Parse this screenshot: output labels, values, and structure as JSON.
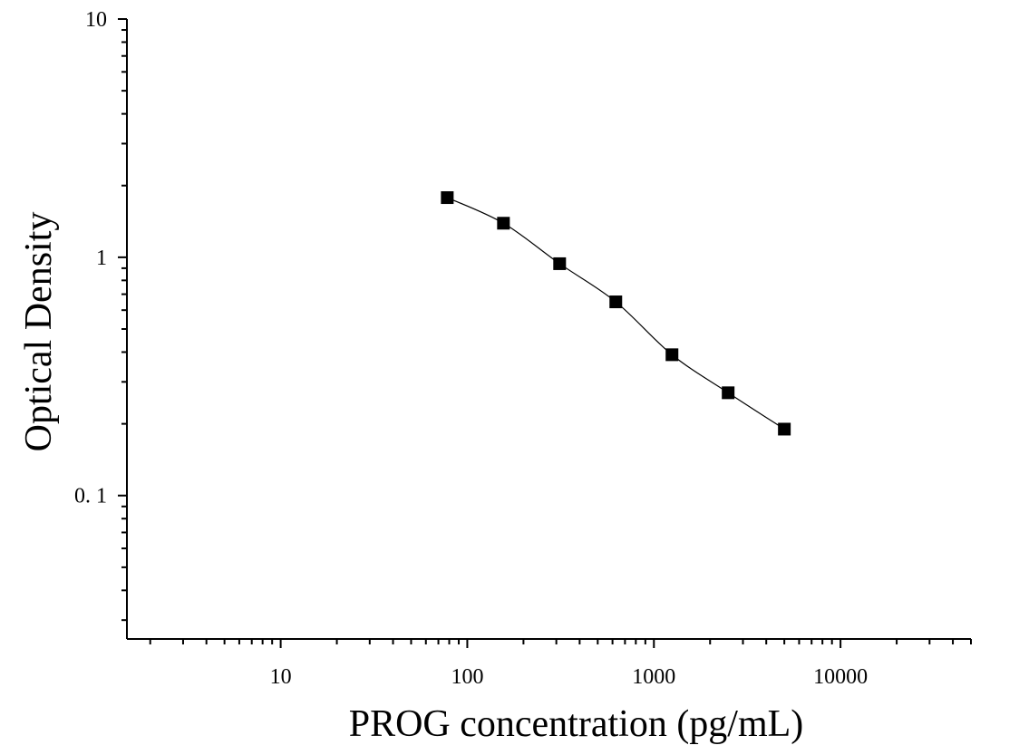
{
  "chart_data": {
    "type": "scatter",
    "xlabel": "PROG concentration (pg/mL)",
    "ylabel": "Optical Density",
    "xscale": "log",
    "yscale": "log",
    "xlim": [
      1.5,
      50000
    ],
    "ylim": [
      0.025,
      10
    ],
    "x_ticks": [
      {
        "value": 10,
        "label": "10"
      },
      {
        "value": 100,
        "label": "100"
      },
      {
        "value": 1000,
        "label": "1000"
      },
      {
        "value": 10000,
        "label": "10000"
      }
    ],
    "y_ticks": [
      {
        "value": 10,
        "label": "10"
      },
      {
        "value": 1,
        "label": "1"
      },
      {
        "value": 0.1,
        "label": "0. 1"
      }
    ],
    "grid": false,
    "legend": "none",
    "marker": "square",
    "series": [
      {
        "points": [
          {
            "x": 78.125,
            "y": 1.78
          },
          {
            "x": 156.25,
            "y": 1.39
          },
          {
            "x": 312.5,
            "y": 0.94
          },
          {
            "x": 625,
            "y": 0.65
          },
          {
            "x": 1250,
            "y": 0.39
          },
          {
            "x": 2500,
            "y": 0.27
          },
          {
            "x": 5000,
            "y": 0.19
          }
        ],
        "fit_curve": true
      }
    ],
    "colors": {
      "line": "#000000",
      "marker": "#000000",
      "axis": "#000000"
    }
  }
}
